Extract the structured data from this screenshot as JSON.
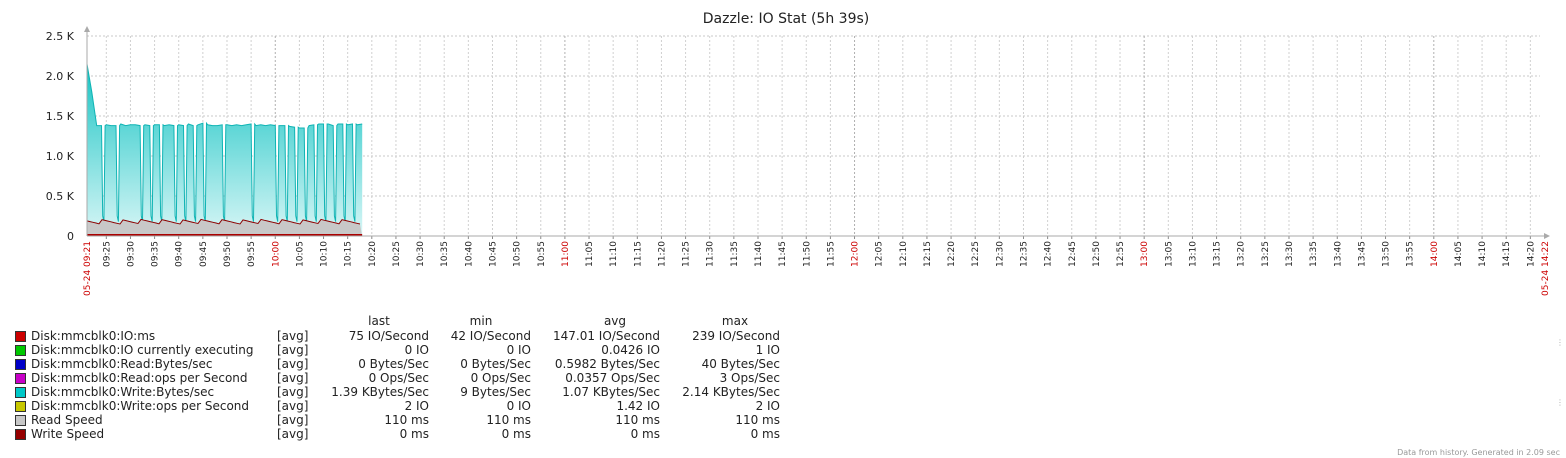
{
  "chart_data": {
    "type": "area",
    "title": "Dazzle: IO Stat (5h 39s)",
    "y_ticks": [
      "0",
      "0.5 K",
      "1.0 K",
      "1.5 K",
      "2.0 K",
      "2.5 K"
    ],
    "ylim": [
      0,
      2500
    ],
    "x_range": [
      "09:21",
      "14:22"
    ],
    "x_start_label": "05-24 09:21",
    "x_end_label": "05-24 14:22",
    "x_ticks": [
      "09:25",
      "09:30",
      "09:35",
      "09:40",
      "09:45",
      "09:50",
      "09:55",
      "10:00",
      "10:05",
      "10:10",
      "10:15",
      "10:20",
      "10:25",
      "10:30",
      "10:35",
      "10:40",
      "10:45",
      "10:50",
      "10:55",
      "11:00",
      "11:05",
      "11:10",
      "11:15",
      "11:20",
      "11:25",
      "11:30",
      "11:35",
      "11:40",
      "11:45",
      "11:50",
      "11:55",
      "12:00",
      "12:05",
      "12:10",
      "12:15",
      "12:20",
      "12:25",
      "12:30",
      "12:35",
      "12:40",
      "12:45",
      "12:50",
      "12:55",
      "13:00",
      "13:05",
      "13:10",
      "13:15",
      "13:20",
      "13:25",
      "13:30",
      "13:35",
      "13:40",
      "13:45",
      "13:50",
      "13:55",
      "14:00",
      "14:05",
      "14:10",
      "14:15",
      "14:20"
    ],
    "highlight_ticks": [
      "10:00",
      "11:00",
      "12:00",
      "13:00",
      "14:00"
    ],
    "grid": true,
    "series": [
      {
        "name": "Disk:mmcblk0:Write:Bytes/sec",
        "color": "#1fc8c8",
        "x": [
          "09:21",
          "09:22",
          "09:23",
          "09:24",
          "09:25",
          "09:26",
          "09:27",
          "09:28",
          "09:29",
          "09:30",
          "09:31",
          "09:32",
          "09:33",
          "09:34",
          "09:35",
          "09:36",
          "09:37",
          "09:38",
          "09:39",
          "09:40",
          "09:41",
          "09:42",
          "09:43",
          "09:44",
          "09:45",
          "09:46",
          "09:47",
          "09:48",
          "09:49",
          "09:50",
          "09:51",
          "09:52",
          "09:53",
          "09:54",
          "09:55",
          "09:56",
          "09:57",
          "09:58",
          "09:59",
          "10:00",
          "10:01",
          "10:02",
          "10:03",
          "10:04",
          "10:05",
          "10:06",
          "10:07",
          "10:08",
          "10:09",
          "10:10",
          "10:11",
          "10:12",
          "10:13",
          "10:14",
          "10:15",
          "10:16",
          "10:17",
          "10:18"
        ],
        "values": [
          2150,
          1800,
          1380,
          1380,
          1390,
          1380,
          1380,
          1400,
          1380,
          1390,
          1390,
          1380,
          1390,
          1380,
          1390,
          1390,
          1380,
          1390,
          1380,
          1390,
          1380,
          1400,
          1380,
          1390,
          1410,
          1390,
          1380,
          1380,
          1390,
          1390,
          1380,
          1390,
          1380,
          1390,
          1400,
          1380,
          1390,
          1380,
          1390,
          1380,
          1380,
          1380,
          1370,
          1360,
          1350,
          1350,
          1380,
          1390,
          1400,
          1400,
          1400,
          1380,
          1400,
          1400,
          1390,
          1400,
          1390,
          1400
        ],
        "dips": [
          "09:24",
          "09:27",
          "09:32",
          "09:34",
          "09:36",
          "09:39",
          "09:41",
          "09:43",
          "09:45",
          "09:49",
          "09:55",
          "10:00",
          "10:02",
          "10:04",
          "10:06",
          "10:08",
          "10:10",
          "10:12",
          "10:14",
          "10:16"
        ]
      },
      {
        "name": "Read Speed",
        "color": "#c8c8c8",
        "constant_ms": 110
      },
      {
        "name": "Disk:mmcblk0:IO:ms",
        "color": "#c80000",
        "values_note": "42-239 IO/Second"
      }
    ]
  },
  "legend": {
    "headers": [
      "last",
      "min",
      "avg",
      "max"
    ],
    "rows": [
      {
        "color": "#cc0000",
        "name": "Disk:mmcblk0:IO:ms",
        "func": "[avg]",
        "last": "75 IO/Second",
        "min": "42 IO/Second",
        "avg": "147.01 IO/Second",
        "max": "239 IO/Second"
      },
      {
        "color": "#00c800",
        "name": "Disk:mmcblk0:IO currently executing",
        "func": "[avg]",
        "last": "0 IO",
        "min": "0 IO",
        "avg": "0.0426 IO",
        "max": "1 IO"
      },
      {
        "color": "#0000c8",
        "name": "Disk:mmcblk0:Read:Bytes/sec",
        "func": "[avg]",
        "last": "0 Bytes/Sec",
        "min": "0 Bytes/Sec",
        "avg": "0.5982 Bytes/Sec",
        "max": "40 Bytes/Sec"
      },
      {
        "color": "#c800c8",
        "name": "Disk:mmcblk0:Read:ops per Second",
        "func": "[avg]",
        "last": "0 Ops/Sec",
        "min": "0 Ops/Sec",
        "avg": "0.0357 Ops/Sec",
        "max": "3 Ops/Sec"
      },
      {
        "color": "#00c8c8",
        "name": "Disk:mmcblk0:Write:Bytes/sec",
        "func": "[avg]",
        "last": "1.39 KBytes/Sec",
        "min": "9 Bytes/Sec",
        "avg": "1.07 KBytes/Sec",
        "max": "2.14 KBytes/Sec"
      },
      {
        "color": "#c8c800",
        "name": "Disk:mmcblk0:Write:ops per Second",
        "func": "[avg]",
        "last": "2 IO",
        "min": "0 IO",
        "avg": "1.42 IO",
        "max": "2 IO"
      },
      {
        "color": "#c8c8c8",
        "name": "Read Speed",
        "func": "[avg]",
        "last": "110 ms",
        "min": "110 ms",
        "avg": "110 ms",
        "max": "110 ms"
      },
      {
        "color": "#960000",
        "name": "Write Speed",
        "func": "[avg]",
        "last": "0 ms",
        "min": "0 ms",
        "avg": "0 ms",
        "max": "0 ms"
      }
    ]
  },
  "footer": "Data from history. Generated in 2.09 sec"
}
